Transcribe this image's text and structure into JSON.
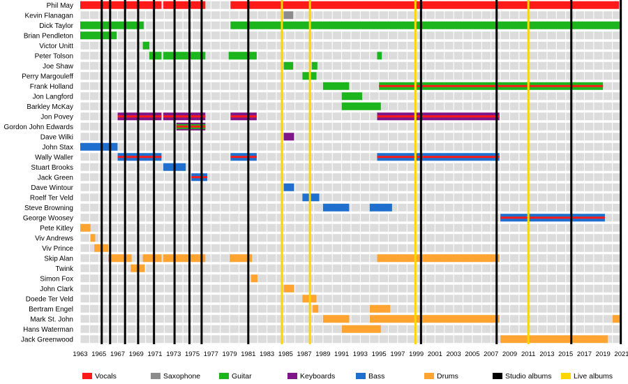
{
  "chart_data": {
    "type": "timeline",
    "title": "",
    "xlabel": "",
    "ylabel": "",
    "xlim": [
      1963,
      2021
    ],
    "x_ticks": [
      "1963",
      "1965",
      "1967",
      "1969",
      "1971",
      "1973",
      "1975",
      "1977",
      "1979",
      "1981",
      "1983",
      "1985",
      "1987",
      "1989",
      "1991",
      "1993",
      "1995",
      "1997",
      "1999",
      "2001",
      "2003",
      "2005",
      "2007",
      "2009",
      "2011",
      "2013",
      "2015",
      "2017",
      "2019",
      "2021"
    ],
    "grid": true,
    "legend_position": "bottom",
    "role_colors": {
      "vocals": "#ff1a1a",
      "saxophone": "#8c8c8c",
      "guitar": "#1db51d",
      "keyboards": "#7f1587",
      "bass": "#1f6fcf",
      "drums": "#ffa431",
      "studio": "#000000",
      "live": "#ffd600"
    },
    "legend": [
      {
        "key": "vocals",
        "label": "Vocals"
      },
      {
        "key": "saxophone",
        "label": "Saxophone"
      },
      {
        "key": "guitar",
        "label": "Guitar"
      },
      {
        "key": "keyboards",
        "label": "Keyboards"
      },
      {
        "key": "bass",
        "label": "Bass"
      },
      {
        "key": "drums",
        "label": "Drums"
      },
      {
        "key": "studio",
        "label": "Studio albums"
      },
      {
        "key": "live",
        "label": "Live albums"
      }
    ],
    "studio_albums": [
      1965.3,
      1966.2,
      1967.8,
      1969.2,
      1970.9,
      1973.1,
      1974.7,
      1976.0,
      1981.0,
      1999.5,
      2007.6,
      2015.6,
      2020.9
    ],
    "live_albums": [
      1984.6,
      1987.6,
      1998.9,
      2011.0
    ],
    "members": [
      {
        "name": "Phil May",
        "bars": [
          {
            "start": 1963.0,
            "end": 1971.7,
            "roles": [
              "vocals"
            ]
          },
          {
            "start": 1971.9,
            "end": 1976.4,
            "roles": [
              "vocals"
            ]
          },
          {
            "start": 1979.1,
            "end": 2020.7,
            "roles": [
              "vocals"
            ]
          }
        ]
      },
      {
        "name": "Kevin Flanagan",
        "bars": [
          {
            "start": 1984.8,
            "end": 1985.8,
            "roles": [
              "saxophone"
            ]
          }
        ]
      },
      {
        "name": "Dick Taylor",
        "bars": [
          {
            "start": 1963.0,
            "end": 1969.8,
            "roles": [
              "guitar"
            ]
          },
          {
            "start": 1979.1,
            "end": 2021.0,
            "roles": [
              "guitar"
            ]
          }
        ]
      },
      {
        "name": "Brian Pendleton",
        "bars": [
          {
            "start": 1963.0,
            "end": 1966.9,
            "roles": [
              "guitar"
            ]
          }
        ]
      },
      {
        "name": "Victor Unitt",
        "bars": [
          {
            "start": 1969.7,
            "end": 1970.4,
            "roles": [
              "guitar"
            ]
          }
        ]
      },
      {
        "name": "Peter Tolson",
        "bars": [
          {
            "start": 1970.4,
            "end": 1971.7,
            "roles": [
              "guitar"
            ]
          },
          {
            "start": 1971.9,
            "end": 1976.4,
            "roles": [
              "guitar"
            ]
          },
          {
            "start": 1978.9,
            "end": 1981.9,
            "roles": [
              "guitar"
            ]
          },
          {
            "start": 1994.8,
            "end": 1995.3,
            "roles": [
              "guitar"
            ]
          }
        ]
      },
      {
        "name": "Joe Shaw",
        "bars": [
          {
            "start": 1984.8,
            "end": 1985.8,
            "roles": [
              "guitar"
            ]
          },
          {
            "start": 1987.8,
            "end": 1988.4,
            "roles": [
              "guitar"
            ]
          }
        ]
      },
      {
        "name": "Perry Margouleff",
        "bars": [
          {
            "start": 1986.8,
            "end": 1988.3,
            "roles": [
              "guitar"
            ]
          }
        ]
      },
      {
        "name": "Frank Holland",
        "bars": [
          {
            "start": 1989.0,
            "end": 1991.8,
            "roles": [
              "guitar"
            ]
          },
          {
            "start": 1995.0,
            "end": 2019.0,
            "roles": [
              "guitar",
              "vocals"
            ]
          }
        ]
      },
      {
        "name": "Jon Langford",
        "bars": [
          {
            "start": 1991.0,
            "end": 1993.2,
            "roles": [
              "guitar"
            ]
          }
        ]
      },
      {
        "name": "Barkley McKay",
        "bars": [
          {
            "start": 1991.0,
            "end": 1995.2,
            "roles": [
              "guitar"
            ]
          }
        ]
      },
      {
        "name": "Jon Povey",
        "bars": [
          {
            "start": 1967.0,
            "end": 1971.7,
            "roles": [
              "keyboards",
              "vocals"
            ]
          },
          {
            "start": 1971.9,
            "end": 1976.4,
            "roles": [
              "keyboards",
              "vocals"
            ]
          },
          {
            "start": 1979.1,
            "end": 1981.9,
            "roles": [
              "keyboards",
              "vocals"
            ]
          },
          {
            "start": 1994.8,
            "end": 2007.9,
            "roles": [
              "keyboards",
              "vocals"
            ]
          }
        ]
      },
      {
        "name": "Gordon John Edwards",
        "bars": [
          {
            "start": 1973.3,
            "end": 1976.4,
            "roles": [
              "keyboards",
              "guitar",
              "vocals"
            ]
          }
        ]
      },
      {
        "name": "Dave Wilki",
        "bars": [
          {
            "start": 1984.8,
            "end": 1985.9,
            "roles": [
              "keyboards"
            ]
          }
        ]
      },
      {
        "name": "John Stax",
        "bars": [
          {
            "start": 1963.0,
            "end": 1967.0,
            "roles": [
              "bass"
            ]
          }
        ]
      },
      {
        "name": "Wally Waller",
        "bars": [
          {
            "start": 1967.0,
            "end": 1971.7,
            "roles": [
              "bass",
              "vocals"
            ]
          },
          {
            "start": 1979.1,
            "end": 1981.9,
            "roles": [
              "bass",
              "vocals"
            ]
          },
          {
            "start": 1994.8,
            "end": 2007.9,
            "roles": [
              "bass",
              "vocals"
            ]
          }
        ]
      },
      {
        "name": "Stuart Brooks",
        "bars": [
          {
            "start": 1971.9,
            "end": 1974.3,
            "roles": [
              "bass"
            ]
          }
        ]
      },
      {
        "name": "Jack Green",
        "bars": [
          {
            "start": 1974.9,
            "end": 1976.6,
            "roles": [
              "bass",
              "vocals"
            ]
          }
        ]
      },
      {
        "name": "Dave Wintour",
        "bars": [
          {
            "start": 1984.8,
            "end": 1985.9,
            "roles": [
              "bass"
            ]
          }
        ]
      },
      {
        "name": "Roelf Ter Veld",
        "bars": [
          {
            "start": 1986.8,
            "end": 1988.6,
            "roles": [
              "bass"
            ]
          }
        ]
      },
      {
        "name": "Steve Browning",
        "bars": [
          {
            "start": 1989.0,
            "end": 1991.8,
            "roles": [
              "bass"
            ]
          },
          {
            "start": 1994.0,
            "end": 1996.4,
            "roles": [
              "bass"
            ]
          }
        ]
      },
      {
        "name": "George Woosey",
        "bars": [
          {
            "start": 2008.0,
            "end": 2019.2,
            "roles": [
              "bass",
              "vocals"
            ]
          }
        ]
      },
      {
        "name": "Pete Kitley",
        "bars": [
          {
            "start": 1963.0,
            "end": 1964.1,
            "roles": [
              "drums"
            ]
          }
        ]
      },
      {
        "name": "Viv Andrews",
        "bars": [
          {
            "start": 1964.1,
            "end": 1964.6,
            "roles": [
              "drums"
            ]
          }
        ]
      },
      {
        "name": "Viv Prince",
        "bars": [
          {
            "start": 1964.5,
            "end": 1966.0,
            "roles": [
              "drums"
            ]
          }
        ]
      },
      {
        "name": "Skip Alan",
        "bars": [
          {
            "start": 1966.0,
            "end": 1968.5,
            "roles": [
              "drums"
            ]
          },
          {
            "start": 1969.7,
            "end": 1971.7,
            "roles": [
              "drums"
            ]
          },
          {
            "start": 1971.9,
            "end": 1976.4,
            "roles": [
              "drums"
            ]
          },
          {
            "start": 1979.0,
            "end": 1981.4,
            "roles": [
              "drums"
            ]
          },
          {
            "start": 1994.8,
            "end": 2007.9,
            "roles": [
              "drums"
            ]
          }
        ]
      },
      {
        "name": "Twink",
        "bars": [
          {
            "start": 1968.4,
            "end": 1969.9,
            "roles": [
              "drums"
            ]
          }
        ]
      },
      {
        "name": "Simon Fox",
        "bars": [
          {
            "start": 1981.3,
            "end": 1982.0,
            "roles": [
              "drums"
            ]
          }
        ]
      },
      {
        "name": "John Clark",
        "bars": [
          {
            "start": 1984.8,
            "end": 1985.9,
            "roles": [
              "drums"
            ]
          }
        ]
      },
      {
        "name": "Doede Ter Veld",
        "bars": [
          {
            "start": 1986.8,
            "end": 1988.3,
            "roles": [
              "drums"
            ]
          }
        ]
      },
      {
        "name": "Bertram Engel",
        "bars": [
          {
            "start": 1987.9,
            "end": 1988.5,
            "roles": [
              "drums"
            ]
          },
          {
            "start": 1994.0,
            "end": 1996.2,
            "roles": [
              "drums"
            ]
          }
        ]
      },
      {
        "name": "Mark St. John",
        "bars": [
          {
            "start": 1989.0,
            "end": 1991.8,
            "roles": [
              "drums"
            ]
          },
          {
            "start": 1994.0,
            "end": 2007.9,
            "roles": [
              "drums"
            ]
          },
          {
            "start": 2020.0,
            "end": 2021.0,
            "roles": [
              "drums"
            ]
          }
        ]
      },
      {
        "name": "Hans Waterman",
        "bars": [
          {
            "start": 1991.0,
            "end": 1995.2,
            "roles": [
              "drums"
            ]
          }
        ]
      },
      {
        "name": "Jack Greenwood",
        "bars": [
          {
            "start": 2008.0,
            "end": 2019.5,
            "roles": [
              "drums"
            ]
          }
        ]
      }
    ]
  }
}
